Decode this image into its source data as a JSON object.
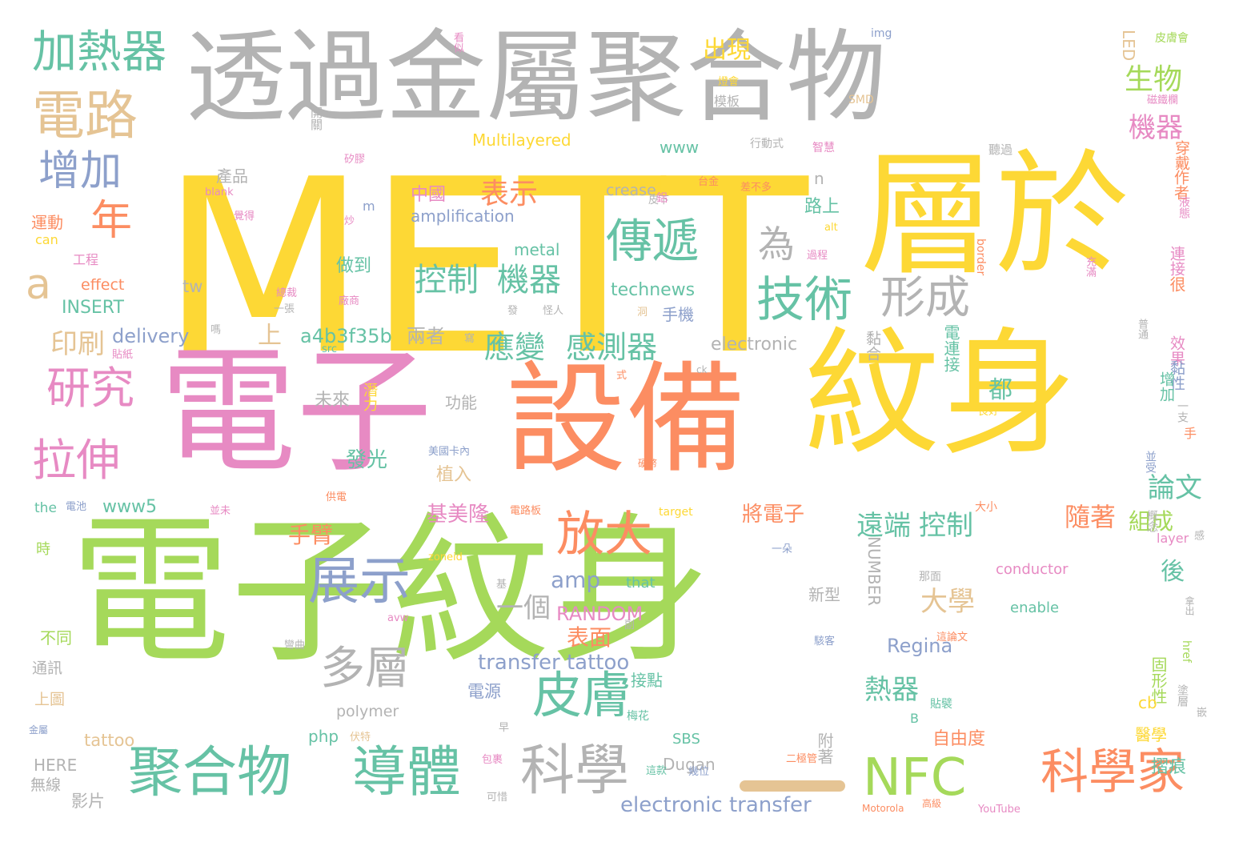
{
  "palette": {
    "yellow": "#fdd835",
    "green": "#a5d95a",
    "pink": "#e78ac3",
    "orange": "#fc8d62",
    "gray": "#b3b3b3",
    "teal": "#66c2a5",
    "tan": "#e5c494",
    "blue": "#8da0cb"
  },
  "words": [
    {
      "text": "METT",
      "color": "yellow"
    },
    {
      "text": "層於",
      "color": "yellow"
    },
    {
      "text": "紋身",
      "color": "yellow"
    },
    {
      "text": "電子",
      "color": "pink"
    },
    {
      "text": "設備",
      "color": "orange"
    },
    {
      "text": "電子紋身",
      "color": "green"
    },
    {
      "text": "透過金屬聚合物",
      "color": "gray"
    },
    {
      "text": "加熱器",
      "color": "teal"
    },
    {
      "text": "電路",
      "color": "tan"
    },
    {
      "text": "增加",
      "color": "blue"
    },
    {
      "text": "年",
      "color": "orange"
    },
    {
      "text": "a",
      "color": "tan"
    },
    {
      "text": "研究",
      "color": "pink"
    },
    {
      "text": "拉伸",
      "color": "pink"
    },
    {
      "text": "聚合物",
      "color": "teal"
    },
    {
      "text": "導體",
      "color": "teal"
    },
    {
      "text": "科學",
      "color": "gray"
    },
    {
      "text": "皮膚",
      "color": "teal"
    },
    {
      "text": "NFC",
      "color": "green"
    },
    {
      "text": "科學家",
      "color": "orange"
    },
    {
      "text": "展示",
      "color": "blue"
    },
    {
      "text": "多層",
      "color": "gray"
    },
    {
      "text": "放大",
      "color": "orange"
    },
    {
      "text": "技術",
      "color": "teal"
    },
    {
      "text": "形成",
      "color": "gray"
    },
    {
      "text": "傳遞",
      "color": "teal"
    },
    {
      "text": "為",
      "color": "gray"
    },
    {
      "text": "控制",
      "color": "teal"
    },
    {
      "text": "機器",
      "color": "teal"
    },
    {
      "text": "應變",
      "color": "teal"
    },
    {
      "text": "感測器",
      "color": "teal"
    },
    {
      "text": "表示",
      "color": "orange"
    },
    {
      "text": "生物",
      "color": "green"
    },
    {
      "text": "機器",
      "color": "pink"
    },
    {
      "text": "出現",
      "color": "yellow"
    },
    {
      "text": "印刷",
      "color": "tan"
    },
    {
      "text": "上",
      "color": "tan"
    },
    {
      "text": "a4b3f35b",
      "color": "teal"
    },
    {
      "text": "兩者",
      "color": "gray"
    },
    {
      "text": "遠端",
      "color": "teal"
    },
    {
      "text": "控制",
      "color": "teal"
    },
    {
      "text": "隨著",
      "color": "orange"
    },
    {
      "text": "大學",
      "color": "tan"
    },
    {
      "text": "一個",
      "color": "gray"
    },
    {
      "text": "amp",
      "color": "blue"
    },
    {
      "text": "手臂",
      "color": "orange"
    },
    {
      "text": "transfer tattoo",
      "color": "blue"
    },
    {
      "text": "electronic transfer",
      "color": "blue"
    },
    {
      "text": "熱器",
      "color": "teal"
    },
    {
      "text": "論文",
      "color": "teal"
    },
    {
      "text": "都",
      "color": "teal"
    },
    {
      "text": "組成",
      "color": "green"
    },
    {
      "text": "Regina",
      "color": "blue"
    },
    {
      "text": "RANDOM",
      "color": "pink"
    },
    {
      "text": "後",
      "color": "teal"
    },
    {
      "text": "表面",
      "color": "orange"
    },
    {
      "text": "將電子",
      "color": "orange"
    },
    {
      "text": "technews",
      "color": "teal"
    },
    {
      "text": "delivery",
      "color": "blue"
    },
    {
      "text": "發光",
      "color": "teal"
    },
    {
      "text": "植入",
      "color": "tan"
    },
    {
      "text": "基美隆",
      "color": "pink"
    },
    {
      "text": "www5",
      "color": "teal"
    },
    {
      "text": "Multilayered",
      "color": "yellow"
    },
    {
      "text": "amplification",
      "color": "blue"
    },
    {
      "text": "中國",
      "color": "pink"
    },
    {
      "text": "metal",
      "color": "teal"
    },
    {
      "text": "做到",
      "color": "teal"
    },
    {
      "text": "路上",
      "color": "teal"
    },
    {
      "text": "electronic",
      "color": "gray"
    },
    {
      "text": "www",
      "color": "teal"
    },
    {
      "text": "產品",
      "color": "gray"
    },
    {
      "text": "模板",
      "color": "gray"
    },
    {
      "text": "手機",
      "color": "blue"
    },
    {
      "text": "crease",
      "color": "gray"
    },
    {
      "text": "tw",
      "color": "gray"
    },
    {
      "text": "effect",
      "color": "orange"
    },
    {
      "text": "INSERT",
      "color": "teal"
    },
    {
      "text": "can",
      "color": "yellow"
    },
    {
      "text": "the",
      "color": "teal"
    },
    {
      "text": "運動",
      "color": "orange"
    },
    {
      "text": "工程",
      "color": "pink"
    },
    {
      "text": "時",
      "color": "green"
    },
    {
      "text": "不同",
      "color": "green"
    },
    {
      "text": "通訊",
      "color": "gray"
    },
    {
      "text": "上圖",
      "color": "tan"
    },
    {
      "text": "HERE",
      "color": "gray"
    },
    {
      "text": "無線",
      "color": "gray"
    },
    {
      "text": "影片",
      "color": "gray"
    },
    {
      "text": "tattoo",
      "color": "tan"
    },
    {
      "text": "php",
      "color": "teal"
    },
    {
      "text": "polymer",
      "color": "gray"
    },
    {
      "text": "電源",
      "color": "blue"
    },
    {
      "text": "接點",
      "color": "teal"
    },
    {
      "text": "附著",
      "color": "gray"
    },
    {
      "text": "Dugan",
      "color": "gray"
    },
    {
      "text": "SBS",
      "color": "teal"
    },
    {
      "text": "自由度",
      "color": "orange"
    },
    {
      "text": "摺痕",
      "color": "teal"
    },
    {
      "text": "醫學",
      "color": "yellow"
    },
    {
      "text": "固形性",
      "color": "green"
    },
    {
      "text": "cb",
      "color": "yellow"
    },
    {
      "text": "B",
      "color": "teal"
    },
    {
      "text": "新型",
      "color": "gray"
    },
    {
      "text": "NUMBER",
      "color": "gray"
    },
    {
      "text": "conductor",
      "color": "pink"
    },
    {
      "text": "enable",
      "color": "teal"
    },
    {
      "text": "layer",
      "color": "pink"
    },
    {
      "text": "that",
      "color": "teal"
    },
    {
      "text": "未來",
      "color": "gray"
    },
    {
      "text": "功能",
      "color": "gray"
    },
    {
      "text": "潛力",
      "color": "yellow"
    },
    {
      "text": "LED",
      "color": "tan"
    },
    {
      "text": "穿戴",
      "color": "orange"
    },
    {
      "text": "作者",
      "color": "orange"
    },
    {
      "text": "連接",
      "color": "pink"
    },
    {
      "text": "很",
      "color": "orange"
    },
    {
      "text": "效果",
      "color": "pink"
    },
    {
      "text": "黏性",
      "color": "blue"
    },
    {
      "text": "增加",
      "color": "teal"
    },
    {
      "text": "電連接",
      "color": "teal"
    },
    {
      "text": "黏合",
      "color": "gray"
    },
    {
      "text": "n",
      "color": "gray"
    },
    {
      "text": "m",
      "color": "blue"
    },
    {
      "text": "img",
      "color": "blue"
    },
    {
      "text": "開關",
      "color": "gray"
    },
    {
      "text": "SMD",
      "color": "tan"
    },
    {
      "text": "行動式",
      "color": "gray"
    },
    {
      "text": "智慧",
      "color": "pink"
    },
    {
      "text": "聽過",
      "color": "gray"
    },
    {
      "text": "皮膚會",
      "color": "green"
    },
    {
      "text": "磁鐵欄",
      "color": "pink"
    },
    {
      "text": "液態",
      "color": "pink"
    },
    {
      "text": "border",
      "color": "orange"
    },
    {
      "text": "充滿",
      "color": "pink"
    },
    {
      "text": "普通",
      "color": "gray"
    },
    {
      "text": "手",
      "color": "orange"
    },
    {
      "text": "一支",
      "color": "gray"
    },
    {
      "text": "並受",
      "color": "blue"
    },
    {
      "text": "感",
      "color": "gray"
    },
    {
      "text": "概念",
      "color": "gray"
    },
    {
      "text": "拿出",
      "color": "gray"
    },
    {
      "text": "href",
      "color": "green"
    },
    {
      "text": "塗層",
      "color": "gray"
    },
    {
      "text": "嵌",
      "color": "gray"
    },
    {
      "text": "看似",
      "color": "pink"
    },
    {
      "text": "燈會",
      "color": "yellow"
    },
    {
      "text": "矽膠",
      "color": "pink"
    },
    {
      "text": "blank",
      "color": "pink"
    },
    {
      "text": "覺得",
      "color": "pink"
    },
    {
      "text": "皮下",
      "color": "gray"
    },
    {
      "text": "台金",
      "color": "orange"
    },
    {
      "text": "差不多",
      "color": "orange"
    },
    {
      "text": "鋁",
      "color": "pink"
    },
    {
      "text": "alt",
      "color": "yellow"
    },
    {
      "text": "過程",
      "color": "pink"
    },
    {
      "text": "總裁",
      "color": "pink"
    },
    {
      "text": "一張",
      "color": "gray"
    },
    {
      "text": "廠商",
      "color": "pink"
    },
    {
      "text": "嗎",
      "color": "gray"
    },
    {
      "text": "src",
      "color": "teal"
    },
    {
      "text": "貼紙",
      "color": "pink"
    },
    {
      "text": "寫",
      "color": "gray"
    },
    {
      "text": "發",
      "color": "gray"
    },
    {
      "text": "怪人",
      "color": "gray"
    },
    {
      "text": "洞",
      "color": "tan"
    },
    {
      "text": "式",
      "color": "orange"
    },
    {
      "text": "ck",
      "color": "gray"
    },
    {
      "text": "良好",
      "color": "yellow"
    },
    {
      "text": "美國卡內",
      "color": "blue"
    },
    {
      "text": "硬幣",
      "color": "orange"
    },
    {
      "text": "供電",
      "color": "orange"
    },
    {
      "text": "電池",
      "color": "blue"
    },
    {
      "text": "並未",
      "color": "pink"
    },
    {
      "text": "電路板",
      "color": "orange"
    },
    {
      "text": "target",
      "color": "yellow"
    },
    {
      "text": "大小",
      "color": "orange"
    },
    {
      "text": "一朵",
      "color": "blue"
    },
    {
      "text": "基",
      "color": "gray"
    },
    {
      "text": "zoneid",
      "color": "yellow"
    },
    {
      "text": "那面",
      "color": "gray"
    },
    {
      "text": "avw",
      "color": "pink"
    },
    {
      "text": "副",
      "color": "gray"
    },
    {
      "text": "彎曲",
      "color": "gray"
    },
    {
      "text": "駭客",
      "color": "blue"
    },
    {
      "text": "這論文",
      "color": "orange"
    },
    {
      "text": "梅花",
      "color": "teal"
    },
    {
      "text": "貼襞",
      "color": "teal"
    },
    {
      "text": "伏特",
      "color": "tan"
    },
    {
      "text": "早",
      "color": "gray"
    },
    {
      "text": "包裹",
      "color": "pink"
    },
    {
      "text": "二極管",
      "color": "orange"
    },
    {
      "text": "這款",
      "color": "teal"
    },
    {
      "text": "幾位",
      "color": "blue"
    },
    {
      "text": "金屬",
      "color": "blue"
    },
    {
      "text": "可惜",
      "color": "gray"
    },
    {
      "text": "Motorola",
      "color": "orange"
    },
    {
      "text": "高級",
      "color": "orange"
    },
    {
      "text": "YouTube",
      "color": "pink"
    },
    {
      "text": "炒",
      "color": "pink"
    }
  ]
}
